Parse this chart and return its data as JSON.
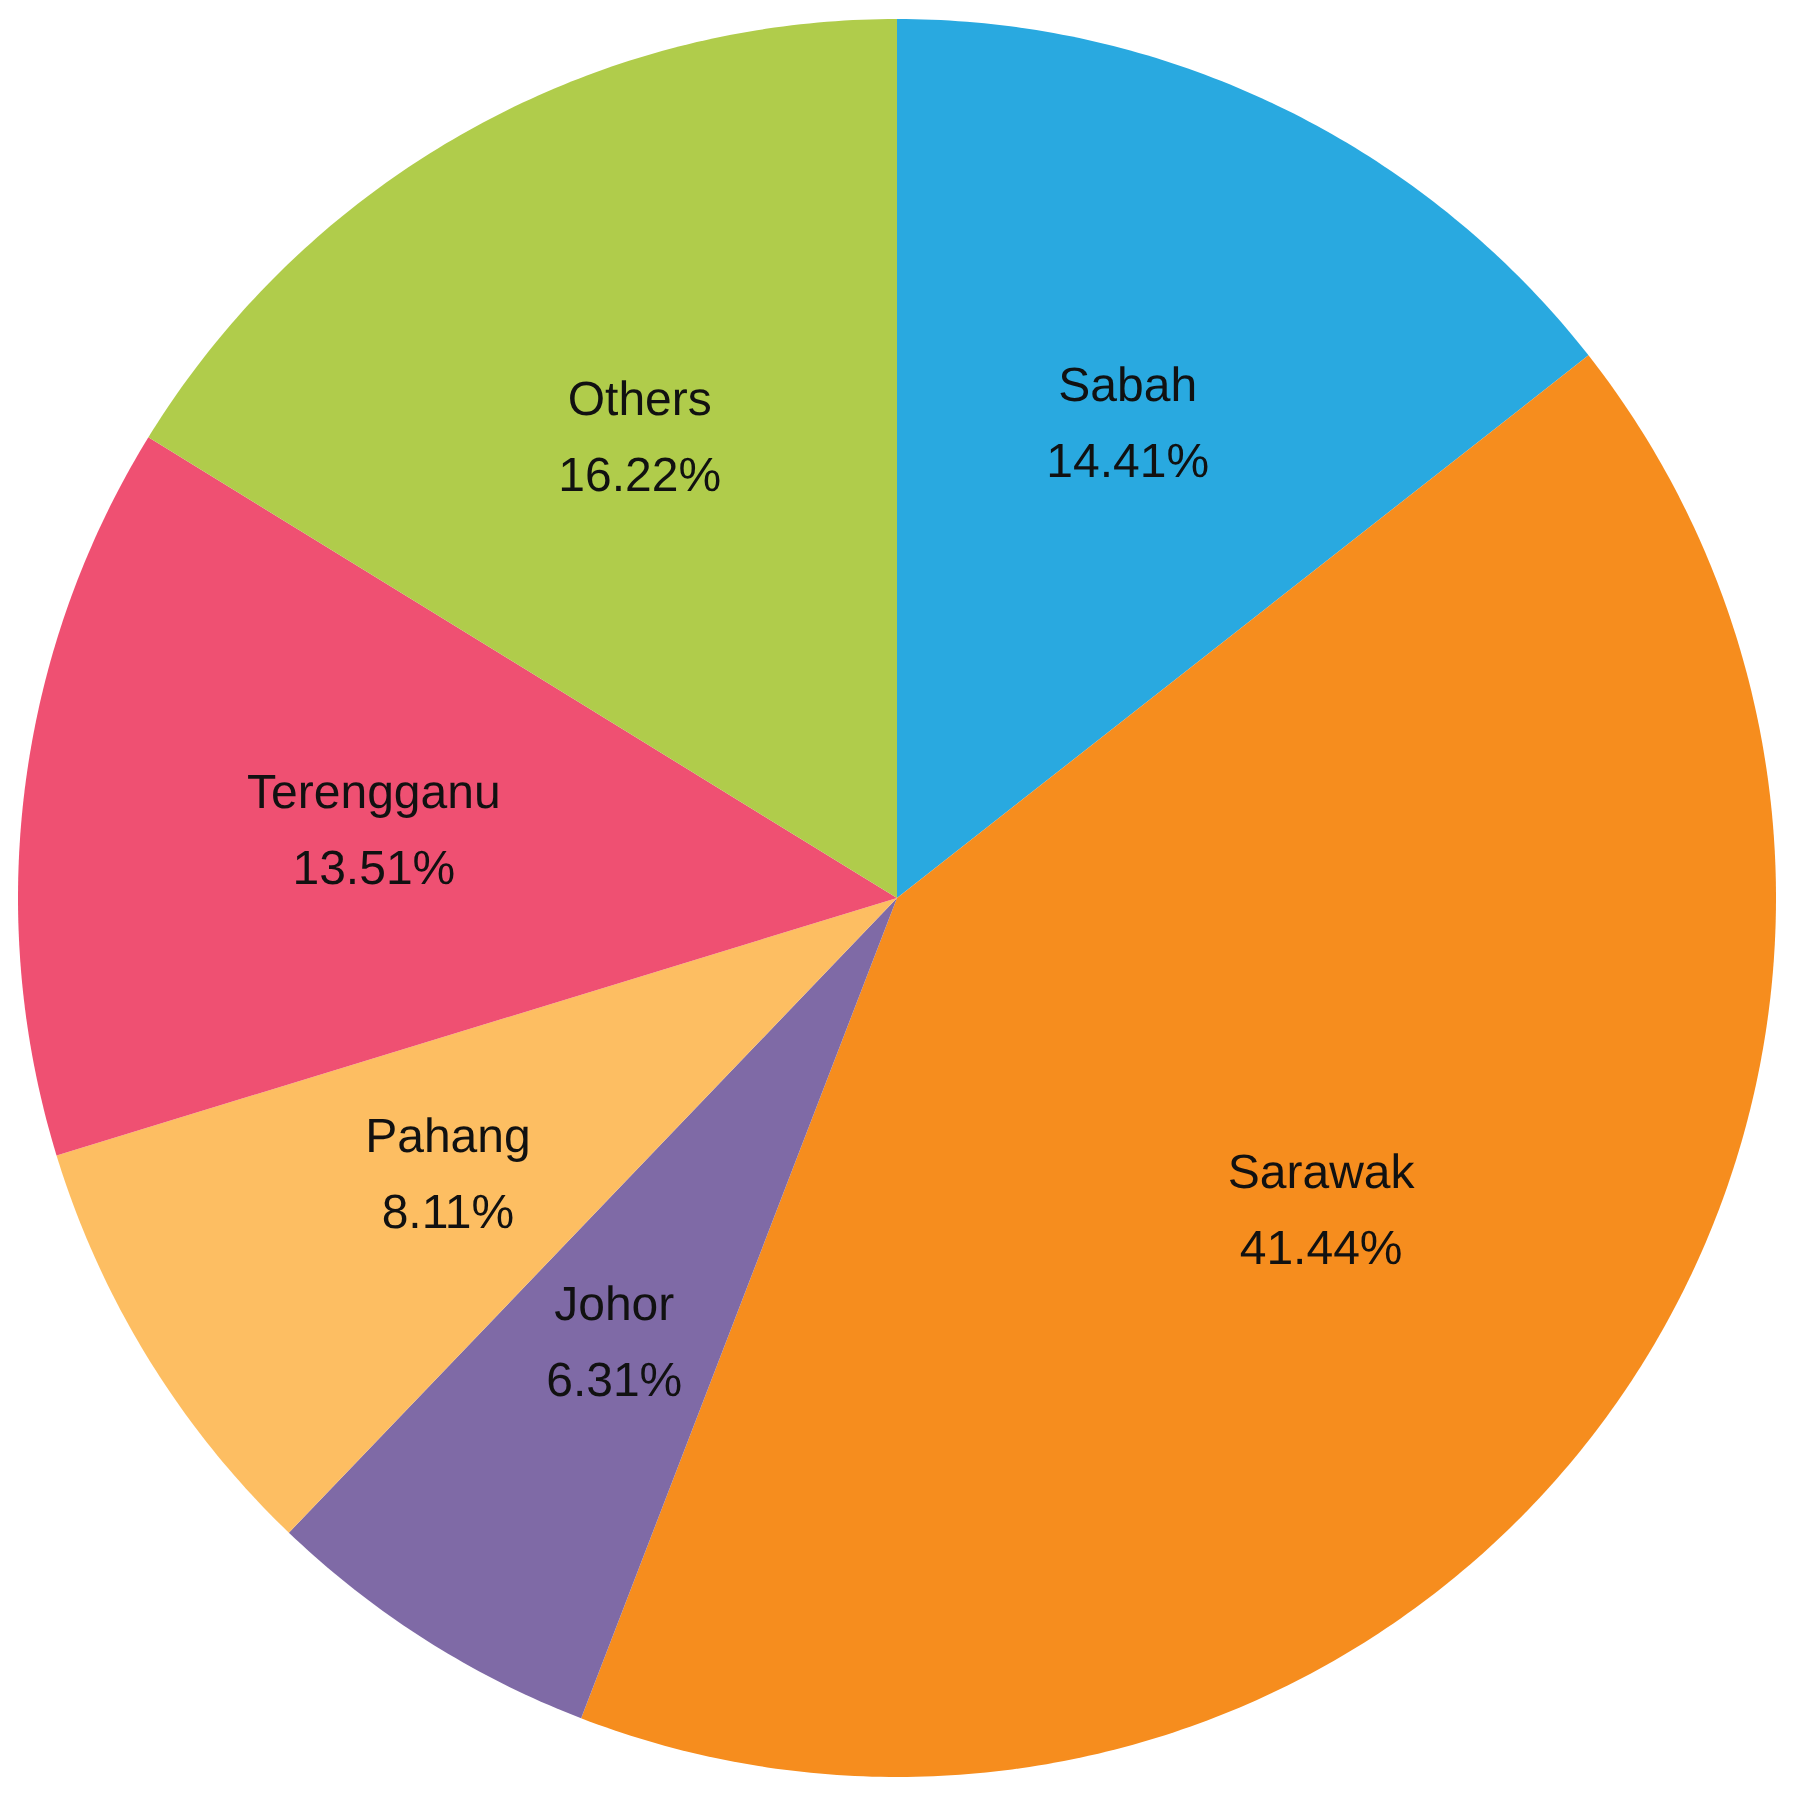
{
  "chart_data": {
    "type": "pie",
    "categories": [
      "Sabah",
      "Sarawak",
      "Johor",
      "Pahang",
      "Terengganu",
      "Others"
    ],
    "values": [
      14.41,
      41.44,
      6.31,
      8.11,
      13.51,
      16.22
    ],
    "value_labels": [
      "14.41%",
      "41.44%",
      "6.31%",
      "8.11%",
      "13.51%",
      "16.22%"
    ],
    "colors": [
      "#29a9e0",
      "#f68d1e",
      "#7f6aa6",
      "#fdbe62",
      "#ef5072",
      "#b0cc4b"
    ]
  }
}
